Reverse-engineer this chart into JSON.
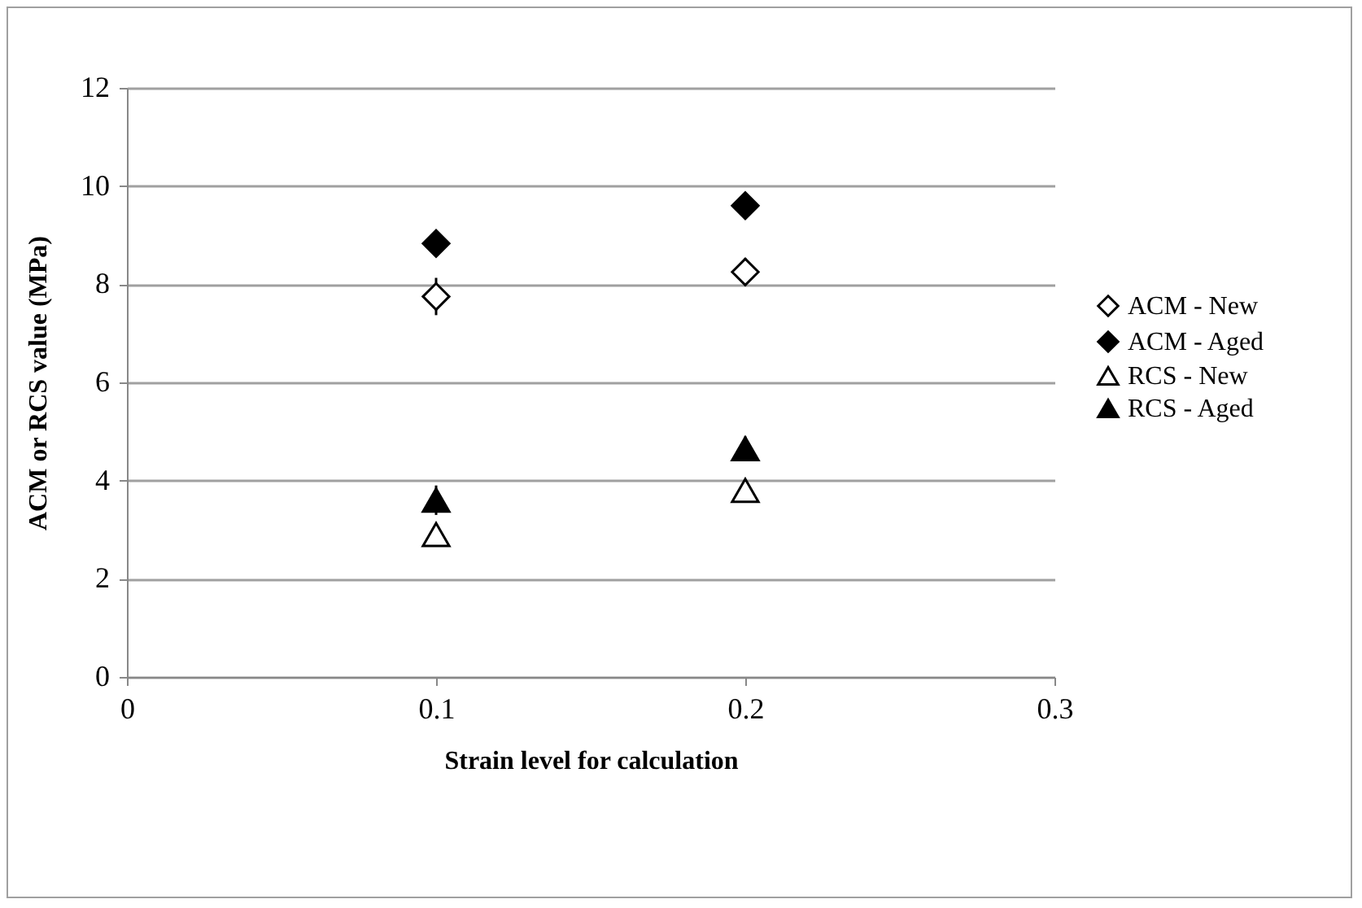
{
  "chart_data": {
    "type": "scatter",
    "xlabel": "Strain level for calculation",
    "ylabel": "ACM or RCS value (MPa)",
    "x": [
      0.1,
      0.2
    ],
    "series": [
      {
        "name": "ACM - New",
        "color": "#ffffff",
        "marker": "diamond",
        "values": [
          7.75,
          8.25
        ],
        "errors": [
          0.38,
          0.28
        ]
      },
      {
        "name": "ACM - Aged",
        "color": "#000000",
        "marker": "diamond",
        "values": [
          8.83,
          9.6
        ],
        "errors": [
          0.1,
          0.1
        ]
      },
      {
        "name": "RCS - New",
        "color": "#ffffff",
        "marker": "triangle",
        "values": [
          2.9,
          3.8
        ],
        "errors": [
          0.2,
          0.12
        ]
      },
      {
        "name": "RCS - Aged",
        "color": "#000000",
        "marker": "triangle",
        "values": [
          3.6,
          4.65
        ],
        "errors": [
          0.3,
          0.25
        ]
      }
    ],
    "xlim": [
      0,
      0.3
    ],
    "xticks": [
      0,
      0.1,
      0.2,
      0.3
    ],
    "ylim": [
      0,
      12
    ],
    "yticks": [
      0,
      2,
      4,
      6,
      8,
      10,
      12
    ],
    "grid": "y",
    "legend": "right"
  }
}
